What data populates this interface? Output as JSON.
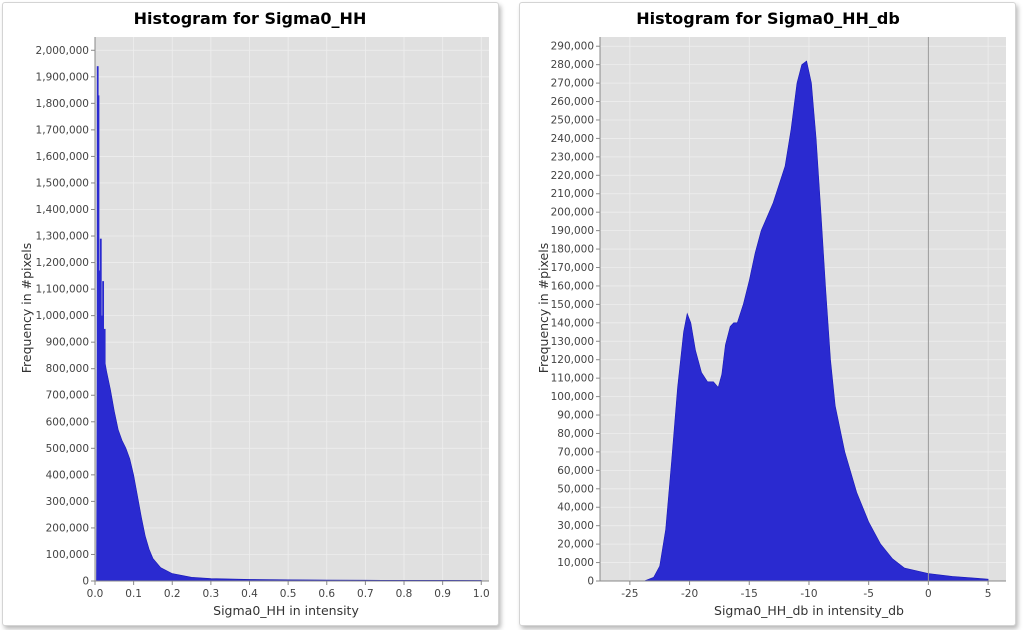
{
  "chart_data": [
    {
      "type": "bar",
      "title": "Histogram for Sigma0_HH",
      "xlabel": "Sigma0_HH in intensity",
      "ylabel": "Frequency in #pixels",
      "xlim": [
        0.0,
        1.02
      ],
      "ylim": [
        0,
        2050000
      ],
      "x_ticks": [
        0.0,
        0.1,
        0.2,
        0.3,
        0.4,
        0.5,
        0.6,
        0.7,
        0.8,
        0.9,
        1.0
      ],
      "x_tick_labels": [
        "0.0",
        "0.1",
        "0.2",
        "0.3",
        "0.4",
        "0.5",
        "0.6",
        "0.7",
        "0.8",
        "0.9",
        "1.0"
      ],
      "y_ticks": [
        0,
        100000,
        200000,
        300000,
        400000,
        500000,
        600000,
        700000,
        800000,
        900000,
        1000000,
        1100000,
        1200000,
        1300000,
        1400000,
        1500000,
        1600000,
        1700000,
        1800000,
        1900000,
        2000000
      ],
      "y_tick_labels": [
        "0",
        "100,000",
        "200,000",
        "300,000",
        "400,000",
        "500,000",
        "600,000",
        "700,000",
        "800,000",
        "900,000",
        "1,000,000",
        "1,100,000",
        "1,200,000",
        "1,300,000",
        "1,400,000",
        "1,500,000",
        "1,600,000",
        "1,700,000",
        "1,800,000",
        "1,900,000",
        "2,000,000"
      ],
      "grid": true,
      "spikes": [
        {
          "x": 0.007,
          "y": 1940000
        },
        {
          "x": 0.009,
          "y": 1830000
        },
        {
          "x": 0.012,
          "y": 1170000
        },
        {
          "x": 0.015,
          "y": 1290000
        },
        {
          "x": 0.018,
          "y": 1000000
        },
        {
          "x": 0.021,
          "y": 1130000
        },
        {
          "x": 0.025,
          "y": 950000
        }
      ],
      "profile": [
        [
          0.0,
          0
        ],
        [
          0.004,
          0
        ],
        [
          0.006,
          880000
        ],
        [
          0.01,
          900000
        ],
        [
          0.015,
          880000
        ],
        [
          0.02,
          860000
        ],
        [
          0.025,
          830000
        ],
        [
          0.03,
          790000
        ],
        [
          0.04,
          720000
        ],
        [
          0.05,
          640000
        ],
        [
          0.06,
          570000
        ],
        [
          0.07,
          530000
        ],
        [
          0.08,
          500000
        ],
        [
          0.09,
          460000
        ],
        [
          0.1,
          400000
        ],
        [
          0.11,
          320000
        ],
        [
          0.12,
          240000
        ],
        [
          0.13,
          170000
        ],
        [
          0.14,
          120000
        ],
        [
          0.15,
          85000
        ],
        [
          0.17,
          50000
        ],
        [
          0.2,
          28000
        ],
        [
          0.25,
          14000
        ],
        [
          0.3,
          9000
        ],
        [
          0.4,
          6000
        ],
        [
          0.5,
          4500
        ],
        [
          0.6,
          3800
        ],
        [
          0.7,
          3200
        ],
        [
          0.8,
          2800
        ],
        [
          0.9,
          2500
        ],
        [
          1.0,
          2300
        ],
        [
          1.0,
          0
        ]
      ],
      "bar_color": "#2a2ad0"
    },
    {
      "type": "bar",
      "title": "Histogram for Sigma0_HH_db",
      "xlabel": "Sigma0_HH_db in intensity_db",
      "ylabel": "Frequency in #pixels",
      "xlim": [
        -27.5,
        6.5
      ],
      "ylim": [
        0,
        295000
      ],
      "x_ticks": [
        -25,
        -20,
        -15,
        -10,
        -5,
        0,
        5
      ],
      "x_tick_labels": [
        "-25",
        "-20",
        "-15",
        "-10",
        "-5",
        "0",
        "5"
      ],
      "y_ticks": [
        0,
        10000,
        20000,
        30000,
        40000,
        50000,
        60000,
        70000,
        80000,
        90000,
        100000,
        110000,
        120000,
        130000,
        140000,
        150000,
        160000,
        170000,
        180000,
        190000,
        200000,
        210000,
        220000,
        230000,
        240000,
        250000,
        260000,
        270000,
        280000,
        290000
      ],
      "y_tick_labels": [
        "0",
        "10,000",
        "20,000",
        "30,000",
        "40,000",
        "50,000",
        "60,000",
        "70,000",
        "80,000",
        "90,000",
        "100,000",
        "110,000",
        "120,000",
        "130,000",
        "140,000",
        "150,000",
        "160,000",
        "170,000",
        "180,000",
        "190,000",
        "200,000",
        "210,000",
        "220,000",
        "230,000",
        "240,000",
        "250,000",
        "260,000",
        "270,000",
        "280,000",
        "290,000"
      ],
      "grid": true,
      "zero_line_x": 0,
      "profile": [
        [
          -25,
          0
        ],
        [
          -23.8,
          0
        ],
        [
          -23,
          2000
        ],
        [
          -22.5,
          8000
        ],
        [
          -22,
          28000
        ],
        [
          -21.5,
          65000
        ],
        [
          -21,
          105000
        ],
        [
          -20.5,
          135000
        ],
        [
          -20.2,
          145000
        ],
        [
          -19.9,
          140000
        ],
        [
          -19.5,
          125000
        ],
        [
          -19,
          113000
        ],
        [
          -18.5,
          108000
        ],
        [
          -18,
          108000
        ],
        [
          -17.6,
          105000
        ],
        [
          -17.3,
          112000
        ],
        [
          -17,
          128000
        ],
        [
          -16.6,
          138000
        ],
        [
          -16.3,
          140000
        ],
        [
          -16,
          140000
        ],
        [
          -15.5,
          150000
        ],
        [
          -15,
          163000
        ],
        [
          -14.5,
          178000
        ],
        [
          -14,
          190000
        ],
        [
          -13,
          205000
        ],
        [
          -12,
          225000
        ],
        [
          -11.5,
          245000
        ],
        [
          -11,
          270000
        ],
        [
          -10.6,
          280000
        ],
        [
          -10.2,
          282000
        ],
        [
          -9.8,
          270000
        ],
        [
          -9.4,
          240000
        ],
        [
          -9,
          200000
        ],
        [
          -8.6,
          158000
        ],
        [
          -8.2,
          120000
        ],
        [
          -7.8,
          95000
        ],
        [
          -7,
          70000
        ],
        [
          -6,
          48000
        ],
        [
          -5,
          32000
        ],
        [
          -4,
          20000
        ],
        [
          -3,
          12000
        ],
        [
          -2,
          7000
        ],
        [
          0,
          4000
        ],
        [
          2,
          2500
        ],
        [
          4,
          1500
        ],
        [
          5,
          1000
        ],
        [
          5,
          0
        ]
      ],
      "bar_color": "#2a2ad0"
    }
  ]
}
